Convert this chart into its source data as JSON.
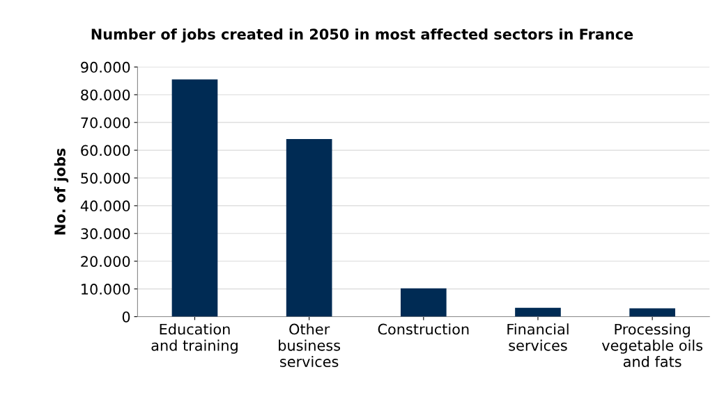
{
  "chart_data": {
    "type": "bar",
    "title": "Number of jobs created in 2050 in most affected sectors in France",
    "ylabel": "No. of jobs",
    "categories": [
      "Education\nand training",
      "Other\nbusiness\nservices",
      "Construction",
      "Financial\nservices",
      "Processing\nvegetable oils\nand fats"
    ],
    "values": [
      85500,
      64000,
      10200,
      3200,
      3000
    ],
    "color": "#002b54",
    "ylim": [
      0,
      90000
    ],
    "yticks": [
      {
        "value": 0,
        "label": "0"
      },
      {
        "value": 10000,
        "label": "10.000"
      },
      {
        "value": 20000,
        "label": "20.000"
      },
      {
        "value": 30000,
        "label": "30.000"
      },
      {
        "value": 40000,
        "label": "40.000"
      },
      {
        "value": 50000,
        "label": "50.000"
      },
      {
        "value": 60000,
        "label": "60.000"
      },
      {
        "value": 70000,
        "label": "70.000"
      },
      {
        "value": 80000,
        "label": "80.000"
      },
      {
        "value": 90000,
        "label": "90.000"
      }
    ],
    "grid": "y"
  }
}
